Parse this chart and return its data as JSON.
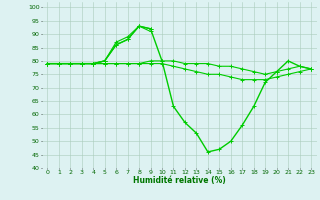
{
  "x": [
    0,
    1,
    2,
    3,
    4,
    5,
    6,
    7,
    8,
    9,
    10,
    11,
    12,
    13,
    14,
    15,
    16,
    17,
    18,
    19,
    20,
    21,
    22,
    23
  ],
  "line_peak": [
    79,
    79,
    79,
    79,
    79,
    80,
    86,
    88,
    93,
    92,
    null,
    null,
    null,
    null,
    null,
    null,
    null,
    null,
    null,
    null,
    null,
    null,
    null,
    null
  ],
  "line_peak2": [
    79,
    79,
    79,
    79,
    79,
    80,
    87,
    89,
    93,
    91,
    null,
    null,
    null,
    null,
    null,
    null,
    null,
    null,
    null,
    null,
    null,
    null,
    null,
    null
  ],
  "line_flat1": [
    79,
    79,
    79,
    79,
    79,
    79,
    79,
    79,
    79,
    80,
    80,
    80,
    79,
    79,
    79,
    78,
    78,
    77,
    76,
    75,
    76,
    77,
    78,
    77
  ],
  "line_flat2": [
    79,
    79,
    79,
    79,
    79,
    79,
    79,
    79,
    79,
    79,
    79,
    78,
    77,
    76,
    75,
    75,
    74,
    73,
    73,
    73,
    74,
    75,
    76,
    77
  ],
  "line_main": [
    79,
    79,
    79,
    79,
    79,
    80,
    86,
    88,
    93,
    92,
    80,
    63,
    57,
    53,
    46,
    47,
    50,
    56,
    63,
    72,
    76,
    80,
    78,
    77
  ],
  "bg_color": "#ddf2f2",
  "grid_color": "#aaccbb",
  "line_color": "#00cc00",
  "xlabel": "Humidité relative (%)",
  "ylim": [
    40,
    102
  ],
  "xlim": [
    -0.5,
    23.5
  ],
  "yticks": [
    40,
    45,
    50,
    55,
    60,
    65,
    70,
    75,
    80,
    85,
    90,
    95,
    100
  ],
  "xticks": [
    0,
    1,
    2,
    3,
    4,
    5,
    6,
    7,
    8,
    9,
    10,
    11,
    12,
    13,
    14,
    15,
    16,
    17,
    18,
    19,
    20,
    21,
    22,
    23
  ]
}
